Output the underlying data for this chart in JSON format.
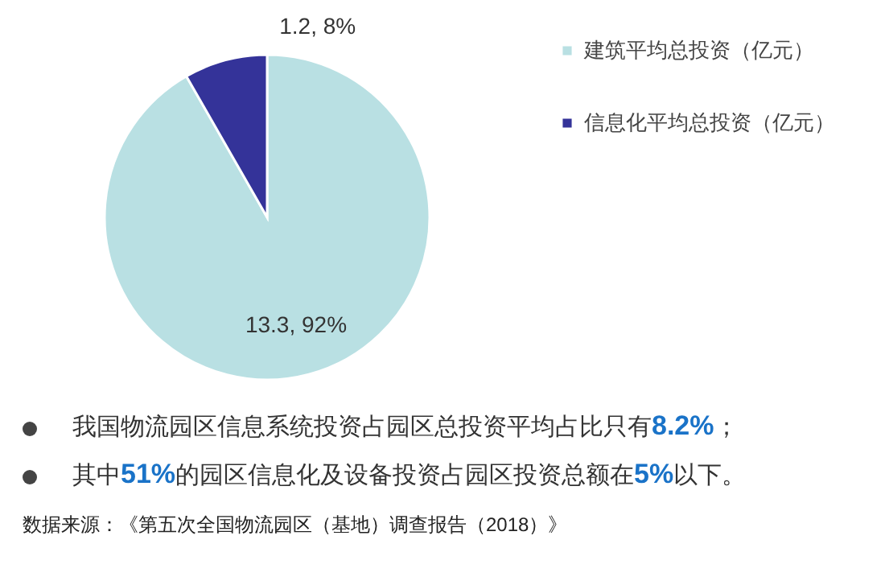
{
  "chart_data": {
    "type": "pie",
    "categories": [
      "建筑平均总投资（亿元）",
      "信息化平均总投资（亿元）"
    ],
    "values": [
      13.3,
      1.2
    ],
    "colors": [
      "#b9e0e3",
      "#343399"
    ],
    "value_labels": [
      "13.3, 92%",
      "1.2, 8%"
    ],
    "legend": "right",
    "annotations": [
      "我国物流园区信息系统投资占园区总投资平均占比只有8.2%；",
      "其中51%的园区信息化及设备投资占园区投资总额在5%以下。",
      "数据来源：《第五次全国物流园区（基地）调查报告（2018）》"
    ]
  }
}
